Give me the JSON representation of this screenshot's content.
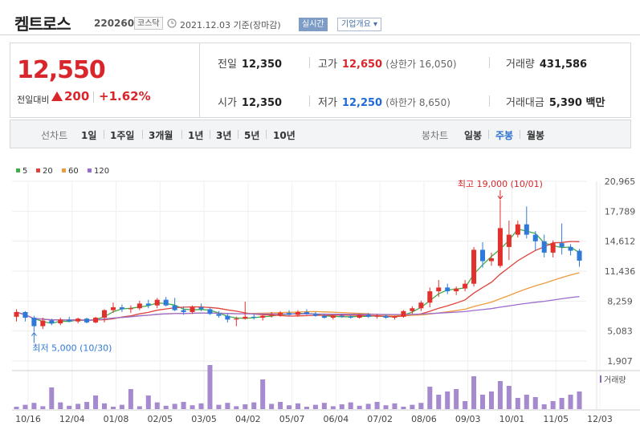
{
  "header": {
    "title": "켐트로스",
    "code": "220260",
    "market": "코스닥",
    "date": "2021.12.03 기준(장마감)",
    "live_button": "실시간",
    "overview_button": "기업개요"
  },
  "price": {
    "current": "12,550",
    "change_label": "전일대비",
    "change": "200",
    "change_pct": "+1.62%"
  },
  "stats": {
    "prev_label": "전일",
    "prev": "12,350",
    "high_label": "고가",
    "high": "12,650",
    "high_limit": "(상한가 16,050)",
    "volume_label": "거래량",
    "volume": "431,586",
    "open_label": "시가",
    "open": "12,350",
    "low_label": "저가",
    "low": "12,250",
    "low_limit": "(하한가 8,650)",
    "amount_label": "거래대금",
    "amount": "5,390 백만"
  },
  "tabs": {
    "line_label": "선차트",
    "line": [
      "1일",
      "1주일",
      "3개월",
      "1년",
      "3년",
      "5년",
      "10년"
    ],
    "candle_label": "봉차트",
    "candle": [
      "일봉",
      "주봉",
      "월봉"
    ],
    "candle_active": "주봉"
  },
  "legend": [
    {
      "name": "5",
      "color": "#3fae49"
    },
    {
      "name": "20",
      "color": "#e0433b"
    },
    {
      "name": "60",
      "color": "#ef9a3c"
    },
    {
      "name": "120",
      "color": "#9b6ccf"
    }
  ],
  "annotations": {
    "high": "최고 19,000 (10/01)",
    "low": "최저 5,000 (10/30)",
    "volume_label": "거래량"
  },
  "chart_data": {
    "type": "candlestick",
    "y_ticks": [
      "20,965",
      "17,789",
      "14,612",
      "11,436",
      "8,259",
      "5,083",
      "1,907"
    ],
    "ylim": [
      1907,
      20965
    ],
    "x_ticks": [
      "10/16",
      "12/04",
      "01/08",
      "02/05",
      "03/05",
      "04/02",
      "05/07",
      "06/04",
      "07/02",
      "08/06",
      "09/03",
      "10/01",
      "11/05",
      "12/03"
    ],
    "candles": [
      [
        6600,
        7400,
        6100,
        7100
      ],
      [
        7100,
        7200,
        6100,
        6500
      ],
      [
        6500,
        6700,
        5000,
        5600
      ],
      [
        5600,
        6500,
        5300,
        6200
      ],
      [
        6200,
        6400,
        5700,
        5900
      ],
      [
        5900,
        6500,
        5700,
        6300
      ],
      [
        6300,
        6600,
        6000,
        6100
      ],
      [
        6100,
        6500,
        5900,
        6400
      ],
      [
        6400,
        6500,
        5900,
        6000
      ],
      [
        6000,
        6600,
        5900,
        6500
      ],
      [
        6500,
        7400,
        6000,
        7300
      ],
      [
        7300,
        8100,
        7000,
        7600
      ],
      [
        7600,
        7900,
        7100,
        7400
      ],
      [
        7400,
        7800,
        7000,
        7500
      ],
      [
        7500,
        8300,
        7300,
        8000
      ],
      [
        8000,
        8400,
        7500,
        7800
      ],
      [
        7800,
        8600,
        7500,
        8400
      ],
      [
        8400,
        8700,
        7700,
        7800
      ],
      [
        7800,
        8600,
        7200,
        7300
      ],
      [
        7300,
        7700,
        6800,
        7100
      ],
      [
        7100,
        7800,
        6900,
        7600
      ],
      [
        7600,
        8000,
        7200,
        7400
      ],
      [
        7400,
        7600,
        6800,
        6900
      ],
      [
        6900,
        7200,
        6500,
        6700
      ],
      [
        6700,
        6900,
        6000,
        6300
      ],
      [
        6300,
        6600,
        5600,
        6400
      ],
      [
        6400,
        8200,
        6300,
        6600
      ],
      [
        6600,
        6900,
        6300,
        6500
      ],
      [
        6500,
        6800,
        6200,
        6700
      ],
      [
        6700,
        7100,
        6500,
        6800
      ],
      [
        6800,
        7200,
        6600,
        7000
      ],
      [
        7000,
        7300,
        6700,
        6800
      ],
      [
        6800,
        7300,
        6600,
        7100
      ],
      [
        7100,
        7400,
        6800,
        6900
      ],
      [
        6900,
        7100,
        6600,
        6700
      ],
      [
        6700,
        6900,
        6400,
        6500
      ],
      [
        6500,
        6800,
        6300,
        6700
      ],
      [
        6700,
        6900,
        6500,
        6600
      ],
      [
        6600,
        6800,
        6400,
        6500
      ],
      [
        6500,
        6900,
        6400,
        6800
      ],
      [
        6800,
        7000,
        6500,
        6600
      ],
      [
        6600,
        6900,
        6400,
        6700
      ],
      [
        6700,
        6800,
        6400,
        6500
      ],
      [
        6500,
        6700,
        6300,
        6600
      ],
      [
        6600,
        7300,
        6500,
        7200
      ],
      [
        7200,
        7700,
        6900,
        7500
      ],
      [
        7500,
        8300,
        7200,
        8100
      ],
      [
        8100,
        9700,
        7600,
        9300
      ],
      [
        9300,
        10500,
        8700,
        9700
      ],
      [
        9700,
        10100,
        9000,
        9300
      ],
      [
        9300,
        9800,
        8900,
        9600
      ],
      [
        9600,
        10500,
        9300,
        10100
      ],
      [
        10100,
        14000,
        9800,
        13700
      ],
      [
        13700,
        14500,
        11800,
        12500
      ],
      [
        12500,
        13400,
        12000,
        12800
      ],
      [
        12000,
        19000,
        11800,
        16000
      ],
      [
        14000,
        16800,
        12600,
        15300
      ],
      [
        15300,
        16800,
        15000,
        16400
      ],
      [
        16400,
        18300,
        14900,
        15300
      ],
      [
        15300,
        15700,
        13600,
        14600
      ],
      [
        14600,
        15300,
        12900,
        13400
      ],
      [
        13400,
        14700,
        12900,
        14400
      ],
      [
        14400,
        16500,
        13200,
        14000
      ],
      [
        14000,
        14300,
        13100,
        13600
      ],
      [
        13600,
        13800,
        11900,
        12550
      ]
    ],
    "ma_series": [
      "5",
      "20",
      "60",
      "120"
    ],
    "volume_peaks": [
      27,
      17,
      25,
      17,
      55,
      37,
      28,
      25,
      41,
      35,
      29,
      15
    ]
  }
}
